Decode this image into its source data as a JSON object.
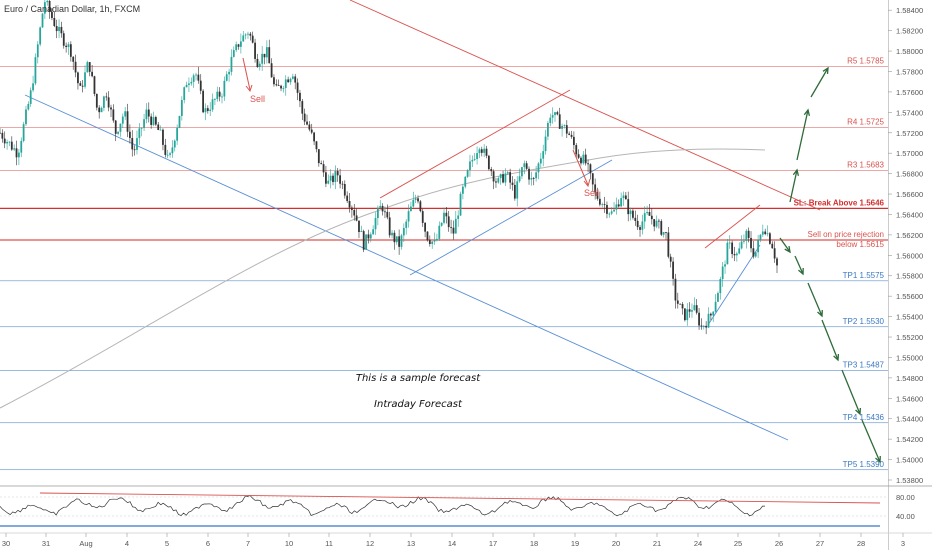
{
  "header": {
    "symbol_title": "Euro / Canadian Dollar, 1h, FXCM"
  },
  "chart_data": {
    "type": "candlestick",
    "y_range": [
      1.538,
      1.585
    ],
    "y_ticks": [
      "1.58400",
      "1.58200",
      "1.58000",
      "1.57800",
      "1.57600",
      "1.57400",
      "1.57200",
      "1.57000",
      "1.56800",
      "1.56600",
      "1.56400",
      "1.56200",
      "1.56000",
      "1.55800",
      "1.55600",
      "1.55400",
      "1.55200",
      "1.55000",
      "1.54800",
      "1.54600",
      "1.54400",
      "1.54200",
      "1.54000",
      "1.53800"
    ],
    "x_ticks": [
      "30",
      "31",
      "Aug",
      "4",
      "5",
      "6",
      "7",
      "10",
      "11",
      "12",
      "13",
      "14",
      "17",
      "18",
      "19",
      "20",
      "21",
      "24",
      "25",
      "26",
      "27",
      "28",
      "3"
    ],
    "levels": [
      {
        "name": "R5",
        "label": "R5 1.5785",
        "value": 1.5785,
        "color": "#d9534f"
      },
      {
        "name": "R4",
        "label": "R4 1.5725",
        "value": 1.5725,
        "color": "#d9534f"
      },
      {
        "name": "R3",
        "label": "R3 1.5683",
        "value": 1.5683,
        "color": "#d9534f"
      },
      {
        "name": "SL",
        "label": "SL: Break Above 1.5646",
        "value": 1.5646,
        "color": "#d32f2f"
      },
      {
        "name": "Entry",
        "label": "Sell on price rejection below 1.5615",
        "value": 1.5615,
        "color": "#d9534f"
      },
      {
        "name": "TP1",
        "label": "TP1 1.5575",
        "value": 1.5575,
        "color": "#3b78c2"
      },
      {
        "name": "TP2",
        "label": "TP2 1.5530",
        "value": 1.553,
        "color": "#3b78c2"
      },
      {
        "name": "TP3",
        "label": "TP3 1.5487",
        "value": 1.5487,
        "color": "#3b78c2"
      },
      {
        "name": "TP4",
        "label": "TP4 1.5436",
        "value": 1.5436,
        "color": "#3b78c2"
      },
      {
        "name": "TP5",
        "label": "TP5 1.5390",
        "value": 1.539,
        "color": "#3b78c2"
      }
    ],
    "price_path": [
      [
        0.0,
        1.572
      ],
      [
        0.02,
        1.57
      ],
      [
        0.035,
        1.576
      ],
      [
        0.05,
        1.585
      ],
      [
        0.065,
        1.582
      ],
      [
        0.08,
        1.58
      ],
      [
        0.09,
        1.576
      ],
      [
        0.1,
        1.579
      ],
      [
        0.11,
        1.574
      ],
      [
        0.12,
        1.576
      ],
      [
        0.13,
        1.572
      ],
      [
        0.14,
        1.574
      ],
      [
        0.15,
        1.57
      ],
      [
        0.165,
        1.574
      ],
      [
        0.18,
        1.572
      ],
      [
        0.19,
        1.569
      ],
      [
        0.2,
        1.573
      ],
      [
        0.21,
        1.577
      ],
      [
        0.22,
        1.578
      ],
      [
        0.23,
        1.574
      ],
      [
        0.24,
        1.575
      ],
      [
        0.25,
        1.576
      ],
      [
        0.26,
        1.579
      ],
      [
        0.27,
        1.581
      ],
      [
        0.28,
        1.582
      ],
      [
        0.29,
        1.579
      ],
      [
        0.3,
        1.58
      ],
      [
        0.31,
        1.576
      ],
      [
        0.32,
        1.577
      ],
      [
        0.33,
        1.578
      ],
      [
        0.34,
        1.574
      ],
      [
        0.35,
        1.572
      ],
      [
        0.36,
        1.569
      ],
      [
        0.37,
        1.567
      ],
      [
        0.38,
        1.568
      ],
      [
        0.39,
        1.566
      ],
      [
        0.4,
        1.564
      ],
      [
        0.41,
        1.561
      ],
      [
        0.42,
        1.563
      ],
      [
        0.43,
        1.565
      ],
      [
        0.44,
        1.562
      ],
      [
        0.45,
        1.561
      ],
      [
        0.46,
        1.564
      ],
      [
        0.47,
        1.566
      ],
      [
        0.48,
        1.562
      ],
      [
        0.49,
        1.561
      ],
      [
        0.5,
        1.564
      ],
      [
        0.51,
        1.562
      ],
      [
        0.52,
        1.566
      ],
      [
        0.53,
        1.569
      ],
      [
        0.54,
        1.571
      ],
      [
        0.55,
        1.569
      ],
      [
        0.56,
        1.567
      ],
      [
        0.57,
        1.568
      ],
      [
        0.58,
        1.566
      ],
      [
        0.59,
        1.569
      ],
      [
        0.6,
        1.567
      ],
      [
        0.61,
        1.57
      ],
      [
        0.62,
        1.574
      ],
      [
        0.63,
        1.573
      ],
      [
        0.64,
        1.572
      ],
      [
        0.65,
        1.57
      ],
      [
        0.66,
        1.569
      ],
      [
        0.67,
        1.566
      ],
      [
        0.68,
        1.565
      ],
      [
        0.69,
        1.564
      ],
      [
        0.7,
        1.566
      ],
      [
        0.71,
        1.564
      ],
      [
        0.72,
        1.563
      ],
      [
        0.73,
        1.564
      ],
      [
        0.74,
        1.563
      ],
      [
        0.75,
        1.562
      ],
      [
        0.755,
        1.559
      ],
      [
        0.76,
        1.556
      ],
      [
        0.77,
        1.554
      ],
      [
        0.78,
        1.555
      ],
      [
        0.79,
        1.553
      ],
      [
        0.8,
        1.554
      ],
      [
        0.81,
        1.557
      ],
      [
        0.82,
        1.561
      ],
      [
        0.83,
        1.56
      ],
      [
        0.84,
        1.562
      ],
      [
        0.85,
        1.56
      ],
      [
        0.86,
        1.563
      ],
      [
        0.87,
        1.561
      ],
      [
        0.875,
        1.559
      ]
    ],
    "rsi_ticks": [
      "80.00",
      "40.00"
    ]
  },
  "annotations": {
    "sample_forecast": "This is a sample forecast",
    "intraday_forecast": "Intraday Forecast",
    "sell_1": "Sell",
    "sell_2": "Sell"
  },
  "colors": {
    "up": "#26a69a",
    "down": "#333333",
    "resistance": "#d9534f",
    "support": "#3b78c2",
    "forecast_arrow": "#2e6b3a"
  }
}
